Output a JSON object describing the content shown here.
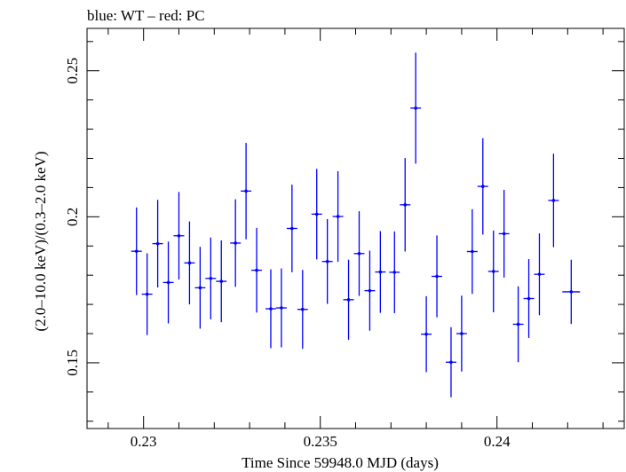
{
  "chart_data": {
    "type": "scatter",
    "title": "blue: WT – red: PC",
    "xlabel": "Time Since 59948.0 MJD (days)",
    "ylabel": "(2.0–10.0 keV)/(0.3–2.0 keV)",
    "xlim": [
      0.2284,
      0.2436
    ],
    "ylim": [
      0.1275,
      0.2645
    ],
    "x_ticks": [
      0.23,
      0.235,
      0.24
    ],
    "x_tick_labels": [
      "0.23",
      "0.235",
      "0.24"
    ],
    "y_ticks": [
      0.15,
      0.2,
      0.25
    ],
    "y_tick_labels": [
      "0.15",
      "0.2",
      "0.25"
    ],
    "grid": false,
    "colors": {
      "WT": "#0000ff",
      "PC": "#ff0000",
      "axis": "#000000"
    },
    "series": [
      {
        "name": "WT",
        "color": "#0000ff",
        "points": [
          {
            "x": 0.2298,
            "xerr": 0.00015,
            "y": 0.1882,
            "yerr": 0.015
          },
          {
            "x": 0.2301,
            "xerr": 0.00015,
            "y": 0.1735,
            "yerr": 0.014
          },
          {
            "x": 0.2304,
            "xerr": 0.00015,
            "y": 0.1908,
            "yerr": 0.015
          },
          {
            "x": 0.2307,
            "xerr": 0.00015,
            "y": 0.1775,
            "yerr": 0.014
          },
          {
            "x": 0.231,
            "xerr": 0.00015,
            "y": 0.1935,
            "yerr": 0.015
          },
          {
            "x": 0.2313,
            "xerr": 0.00015,
            "y": 0.1842,
            "yerr": 0.0142
          },
          {
            "x": 0.2316,
            "xerr": 0.00015,
            "y": 0.1757,
            "yerr": 0.014
          },
          {
            "x": 0.2319,
            "xerr": 0.00015,
            "y": 0.1789,
            "yerr": 0.014
          },
          {
            "x": 0.2322,
            "xerr": 0.00015,
            "y": 0.1779,
            "yerr": 0.014
          },
          {
            "x": 0.2326,
            "xerr": 0.00015,
            "y": 0.191,
            "yerr": 0.015
          },
          {
            "x": 0.2329,
            "xerr": 0.00015,
            "y": 0.2088,
            "yerr": 0.0165
          },
          {
            "x": 0.2332,
            "xerr": 0.00015,
            "y": 0.1817,
            "yerr": 0.0145
          },
          {
            "x": 0.2336,
            "xerr": 0.00015,
            "y": 0.1685,
            "yerr": 0.0135
          },
          {
            "x": 0.2339,
            "xerr": 0.00015,
            "y": 0.1688,
            "yerr": 0.0135
          },
          {
            "x": 0.2342,
            "xerr": 0.00015,
            "y": 0.196,
            "yerr": 0.015
          },
          {
            "x": 0.2345,
            "xerr": 0.00015,
            "y": 0.1683,
            "yerr": 0.0135
          },
          {
            "x": 0.2349,
            "xerr": 0.00015,
            "y": 0.2009,
            "yerr": 0.0155
          },
          {
            "x": 0.2352,
            "xerr": 0.00015,
            "y": 0.1847,
            "yerr": 0.0145
          },
          {
            "x": 0.2355,
            "xerr": 0.00015,
            "y": 0.2001,
            "yerr": 0.0155
          },
          {
            "x": 0.2358,
            "xerr": 0.00015,
            "y": 0.1716,
            "yerr": 0.0137
          },
          {
            "x": 0.2361,
            "xerr": 0.00015,
            "y": 0.1874,
            "yerr": 0.0145
          },
          {
            "x": 0.2364,
            "xerr": 0.00015,
            "y": 0.1747,
            "yerr": 0.0137
          },
          {
            "x": 0.2367,
            "xerr": 0.00015,
            "y": 0.1811,
            "yerr": 0.014
          },
          {
            "x": 0.2371,
            "xerr": 0.00015,
            "y": 0.181,
            "yerr": 0.014
          },
          {
            "x": 0.2374,
            "xerr": 0.00015,
            "y": 0.2041,
            "yerr": 0.016
          },
          {
            "x": 0.2377,
            "xerr": 0.00015,
            "y": 0.2372,
            "yerr": 0.019
          },
          {
            "x": 0.238,
            "xerr": 0.00015,
            "y": 0.1598,
            "yerr": 0.013
          },
          {
            "x": 0.2383,
            "xerr": 0.00015,
            "y": 0.1796,
            "yerr": 0.014
          },
          {
            "x": 0.2387,
            "xerr": 0.00015,
            "y": 0.1502,
            "yerr": 0.012
          },
          {
            "x": 0.239,
            "xerr": 0.00015,
            "y": 0.16,
            "yerr": 0.013
          },
          {
            "x": 0.2393,
            "xerr": 0.00015,
            "y": 0.1881,
            "yerr": 0.0145
          },
          {
            "x": 0.2396,
            "xerr": 0.00015,
            "y": 0.2104,
            "yerr": 0.0165
          },
          {
            "x": 0.2399,
            "xerr": 0.00015,
            "y": 0.1813,
            "yerr": 0.014
          },
          {
            "x": 0.2402,
            "xerr": 0.00015,
            "y": 0.1942,
            "yerr": 0.015
          },
          {
            "x": 0.2406,
            "xerr": 0.00015,
            "y": 0.1632,
            "yerr": 0.013
          },
          {
            "x": 0.2409,
            "xerr": 0.00015,
            "y": 0.172,
            "yerr": 0.0135
          },
          {
            "x": 0.2412,
            "xerr": 0.00015,
            "y": 0.1803,
            "yerr": 0.014
          },
          {
            "x": 0.2416,
            "xerr": 0.00015,
            "y": 0.2056,
            "yerr": 0.016
          },
          {
            "x": 0.2421,
            "xerr": 0.00025,
            "y": 0.1743,
            "yerr": 0.011
          }
        ]
      }
    ]
  }
}
